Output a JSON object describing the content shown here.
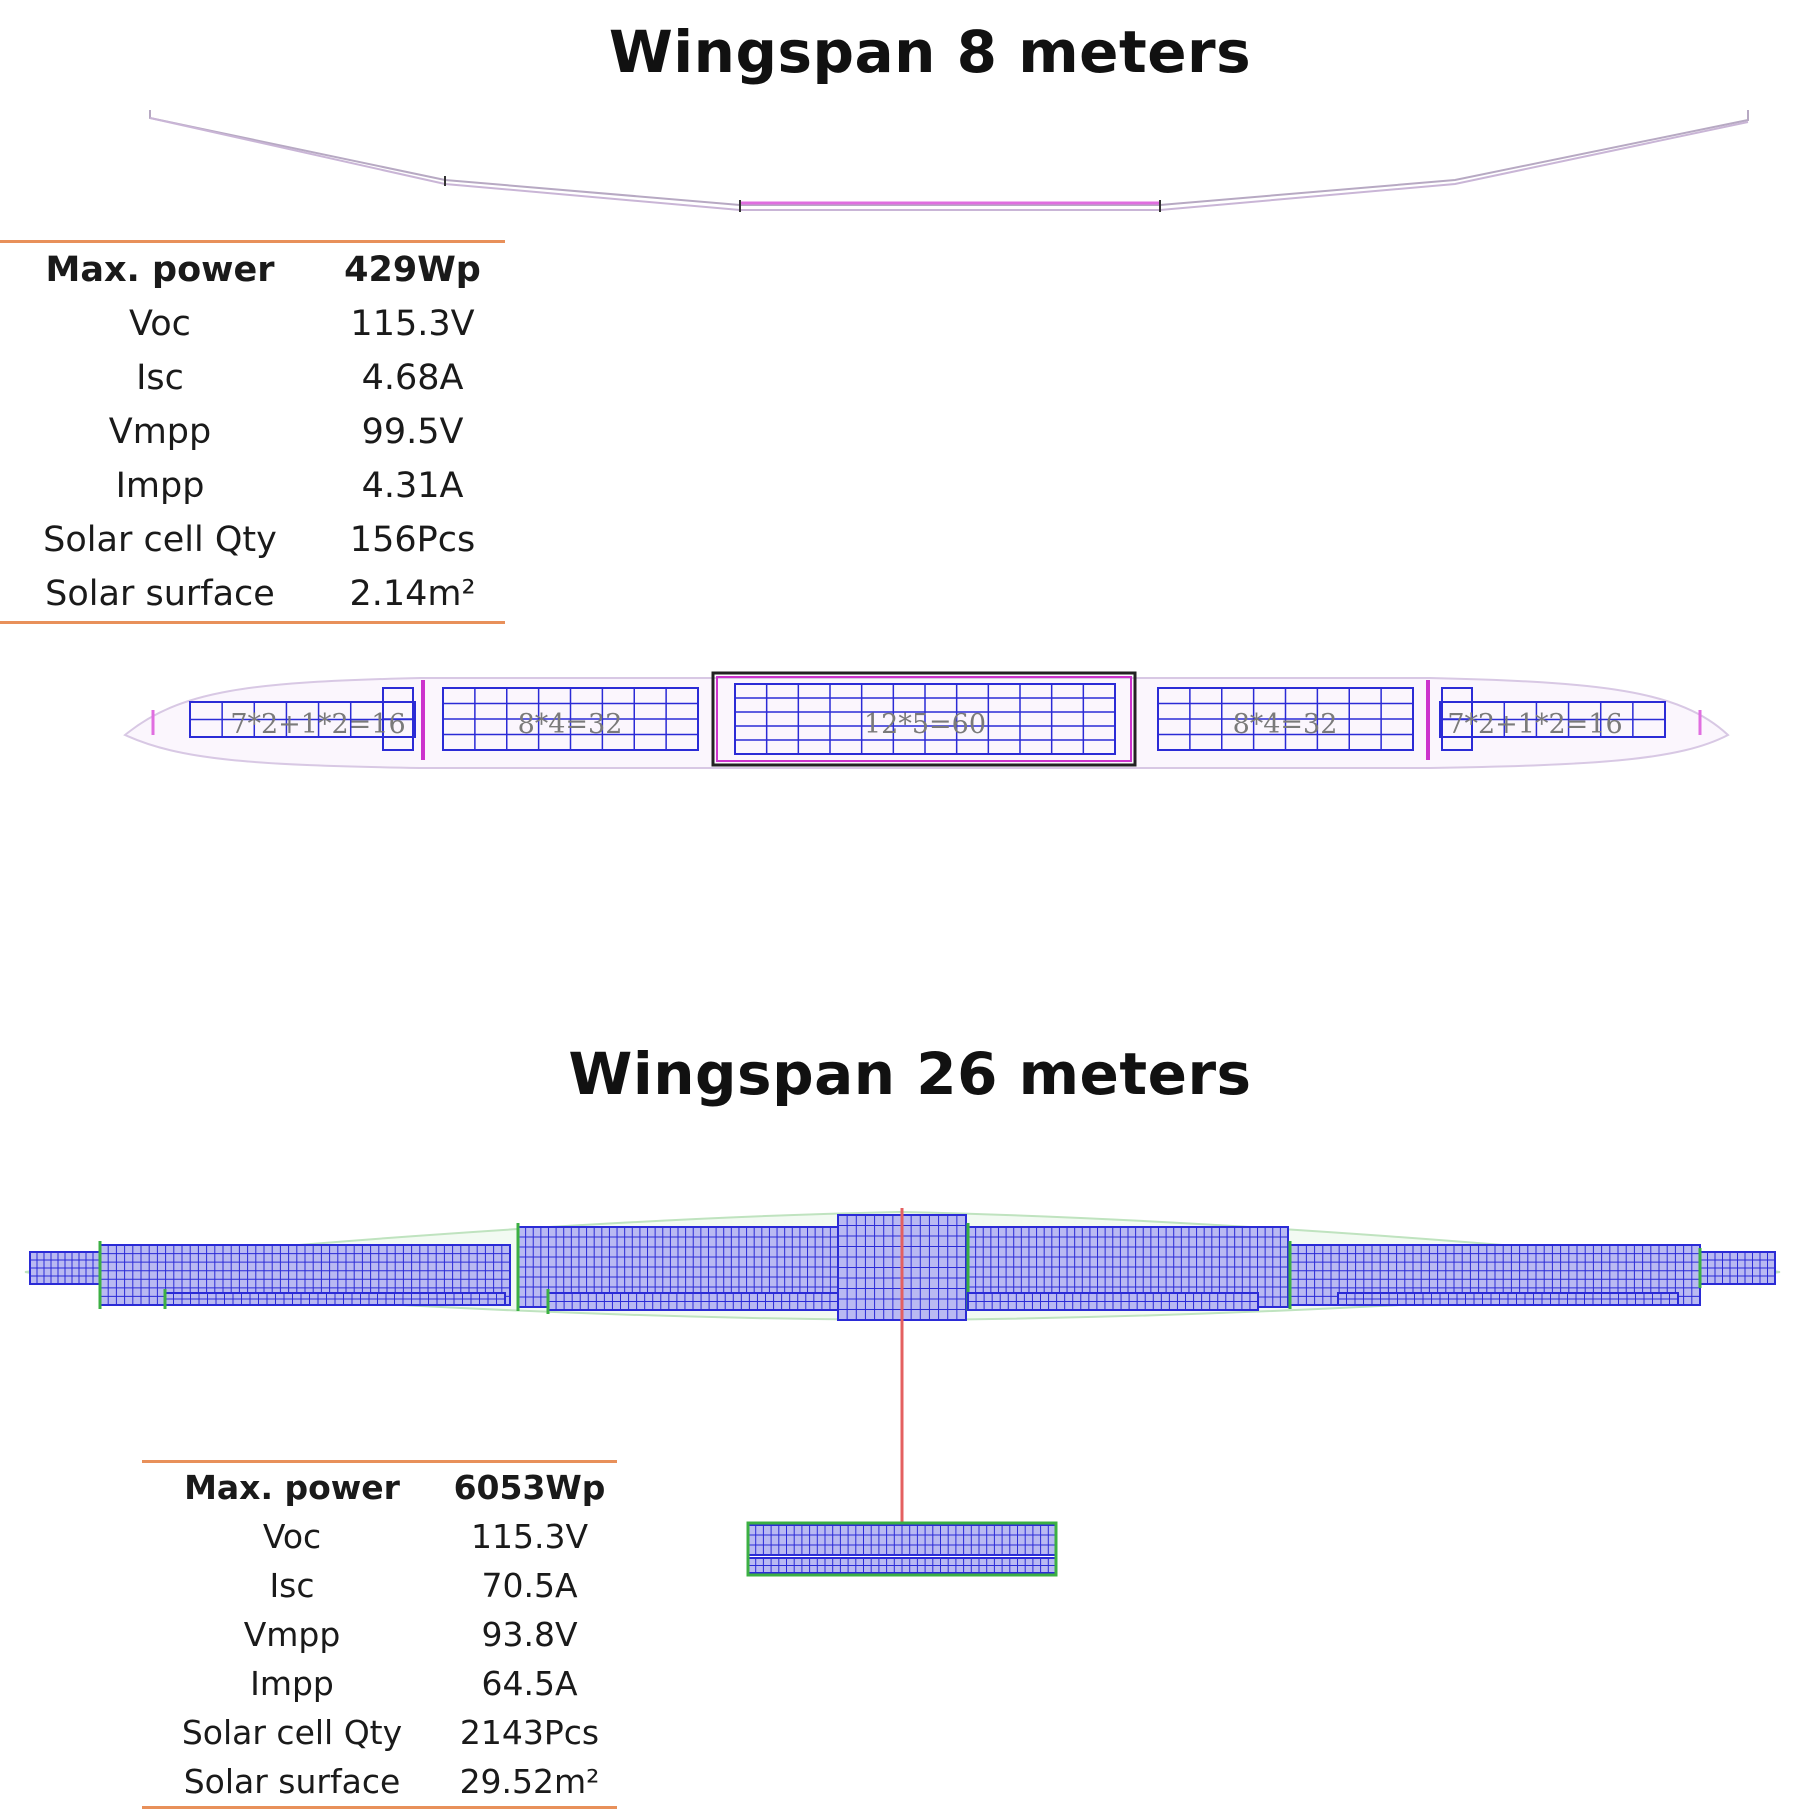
{
  "small": {
    "title": "Wingspan 8 meters",
    "specs": [
      {
        "label": "Max. power",
        "value": "429Wp"
      },
      {
        "label": "Voc",
        "value": "115.3V"
      },
      {
        "label": "Isc",
        "value": "4.68A"
      },
      {
        "label": "Vmpp",
        "value": "99.5V"
      },
      {
        "label": "Impp",
        "value": "4.31A"
      },
      {
        "label": "Solar cell Qty",
        "value": "156Pcs"
      },
      {
        "label": "Solar surface",
        "value": "2.14m²"
      }
    ],
    "panel_labels": [
      "7*2+1*2=16",
      "8*4=32",
      "12*5=60",
      "8*4=32",
      "7*2+1*2=16"
    ]
  },
  "large": {
    "title": "Wingspan 26 meters",
    "specs": [
      {
        "label": "Max. power",
        "value": "6053Wp"
      },
      {
        "label": "Voc",
        "value": "115.3V"
      },
      {
        "label": "Isc",
        "value": "70.5A"
      },
      {
        "label": "Vmpp",
        "value": "93.8V"
      },
      {
        "label": "Impp",
        "value": "64.5A"
      },
      {
        "label": "Solar cell Qty",
        "value": "2143Pcs"
      },
      {
        "label": "Solar surface",
        "value": "29.52m²"
      }
    ]
  },
  "colors": {
    "cell_grid": "#2b2bd6",
    "cell_fill": "#b9b9f2",
    "accent_rule": "#e8905a",
    "center_frame": "#cc33cc",
    "fuselage": "#e46060",
    "outline_green": "#3cb043"
  }
}
